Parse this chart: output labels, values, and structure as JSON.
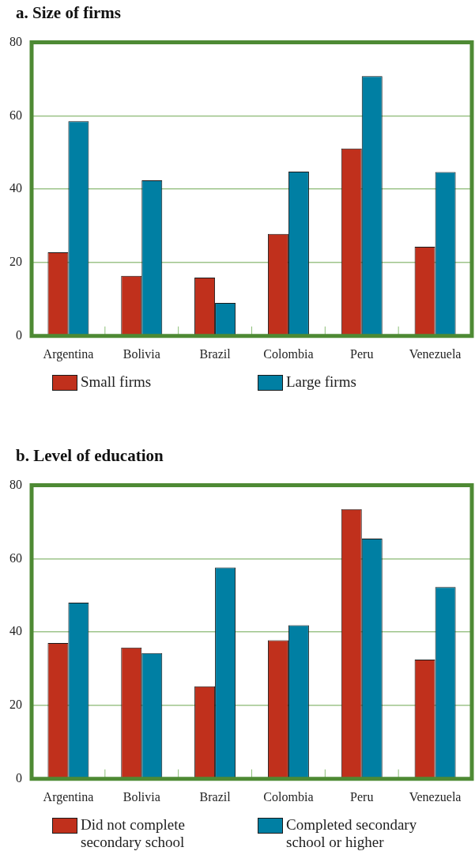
{
  "chart_data": [
    {
      "type": "bar",
      "title": "a. Size of firms",
      "categories": [
        "Argentina",
        "Bolivia",
        "Brazil",
        "Colombia",
        "Peru",
        "Venezuela"
      ],
      "series": [
        {
          "name": "Small firms",
          "color": "#c0301c",
          "values": [
            22.8,
            16.4,
            15.9,
            27.8,
            51.1,
            24.3
          ]
        },
        {
          "name": "Large firms",
          "color": "#007fa3",
          "values": [
            58.5,
            42.4,
            9.0,
            44.8,
            70.8,
            44.7
          ]
        }
      ],
      "ylim": [
        0,
        80
      ],
      "yticks": [
        0,
        20,
        40,
        60,
        80
      ],
      "grid": "y",
      "legend": "bottom"
    },
    {
      "type": "bar",
      "title": "b. Level of education",
      "categories": [
        "Argentina",
        "Bolivia",
        "Brazil",
        "Colombia",
        "Peru",
        "Venezuela"
      ],
      "series": [
        {
          "name": "Did not complete secondary school",
          "color": "#c0301c",
          "values": [
            37.0,
            35.8,
            25.2,
            37.8,
            73.5,
            32.5
          ]
        },
        {
          "name": "Completed secondary school or higher",
          "color": "#007fa3",
          "values": [
            48.0,
            34.3,
            57.6,
            41.9,
            65.5,
            52.3
          ]
        }
      ],
      "ylim": [
        0,
        80
      ],
      "yticks": [
        0,
        20,
        40,
        60,
        80
      ],
      "grid": "y",
      "legend": "bottom"
    }
  ]
}
